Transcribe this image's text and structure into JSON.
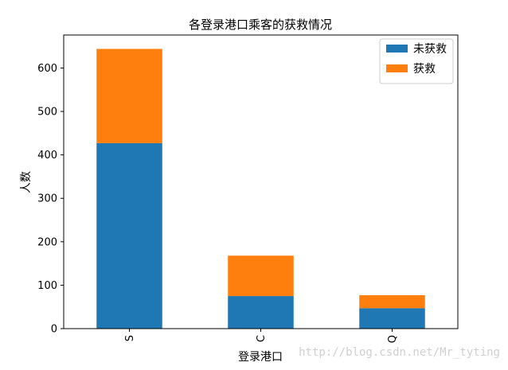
{
  "chart_data": {
    "type": "bar",
    "stacked": true,
    "title": "各登录港口乘客的获救情况",
    "xlabel": "登录港口",
    "ylabel": "人数",
    "categories": [
      "S",
      "C",
      "Q"
    ],
    "series": [
      {
        "name": "未获救",
        "values": [
          427,
          75,
          47
        ],
        "color": "#1f77b4"
      },
      {
        "name": "获救",
        "values": [
          217,
          93,
          30
        ],
        "color": "#ff7f0e"
      }
    ],
    "ylim": [
      0,
      676
    ],
    "yticks": [
      0,
      100,
      200,
      300,
      400,
      500,
      600
    ],
    "grid": false,
    "legend": "top-right"
  },
  "watermark": "http://blog.csdn.net/Mr_tyting"
}
